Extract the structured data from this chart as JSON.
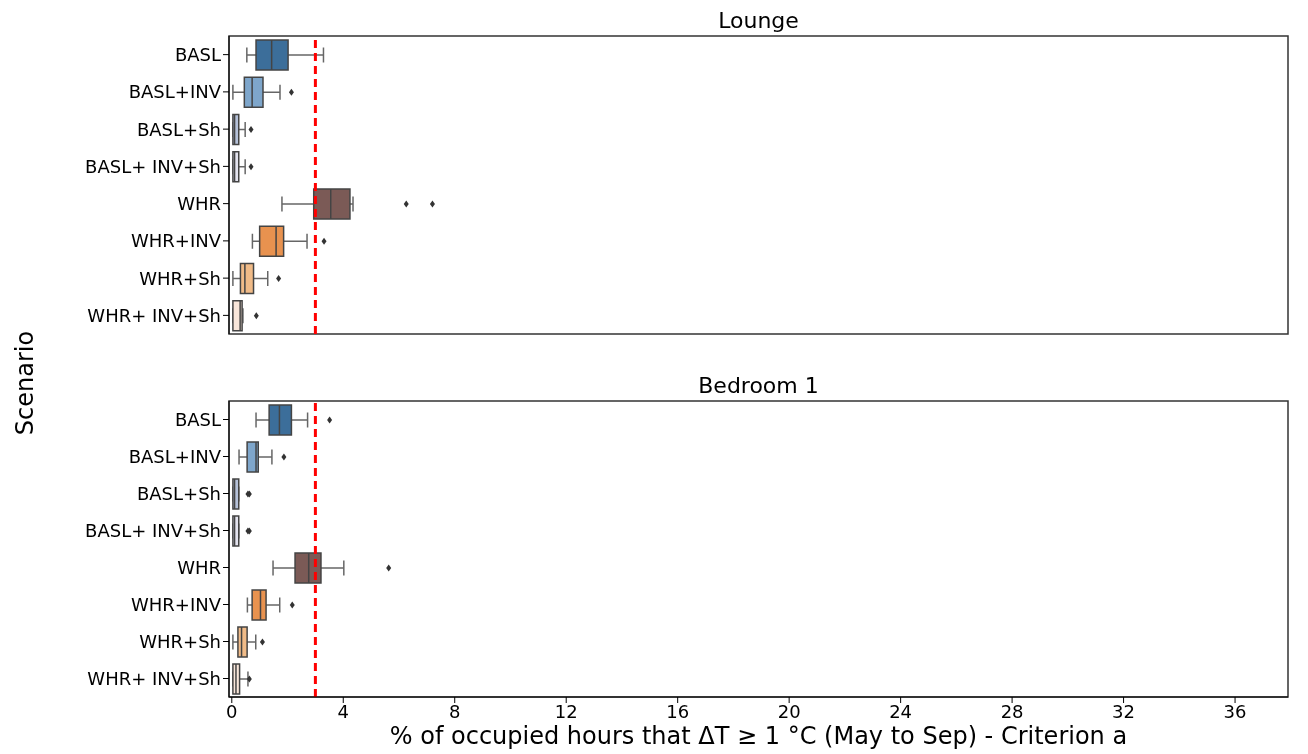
{
  "chart_data": [
    {
      "type": "box",
      "orientation": "horizontal",
      "title": "Lounge",
      "ylabel": "Scenario",
      "tick_labels": "y",
      "categories": [
        "BASL",
        "BASL+INV",
        "BASL+Sh",
        "BASL+ INV+Sh",
        "WHR",
        "WHR+INV",
        "WHR+Sh",
        "WHR+ INV+Sh"
      ],
      "colors": [
        "#3c6e9a",
        "#7ea6cb",
        "#b5c1d9",
        "#e4e4ef",
        "#7b5a56",
        "#e8924f",
        "#f0bb88",
        "#f9e6da"
      ],
      "boxes": [
        {
          "low": 0.54,
          "q1": 0.87,
          "median": 1.43,
          "q3": 2.02,
          "high": 3.29
        },
        {
          "low": 0.04,
          "q1": 0.45,
          "median": 0.73,
          "q3": 1.12,
          "high": 1.73,
          "outliers": [
            2.14
          ]
        },
        {
          "low": 0.04,
          "q1": 0.04,
          "median": 0.1,
          "q3": 0.25,
          "high": 0.48,
          "outliers": [
            0.69
          ]
        },
        {
          "low": 0.04,
          "q1": 0.04,
          "median": 0.1,
          "q3": 0.25,
          "high": 0.48,
          "outliers": [
            0.69
          ]
        },
        {
          "low": 1.8,
          "q1": 2.94,
          "median": 3.55,
          "q3": 4.24,
          "high": 4.35,
          "outliers": [
            6.26,
            7.2
          ]
        },
        {
          "low": 0.74,
          "q1": 1.0,
          "median": 1.59,
          "q3": 1.86,
          "high": 2.7,
          "outliers": [
            3.31
          ]
        },
        {
          "low": 0.04,
          "q1": 0.31,
          "median": 0.47,
          "q3": 0.78,
          "high": 1.29,
          "outliers": [
            1.68
          ]
        },
        {
          "low": 0.04,
          "q1": 0.04,
          "median": 0.3,
          "q3": 0.37,
          "high": 0.4,
          "outliers": [
            0.88
          ]
        }
      ],
      "xlim": [
        -0.1,
        37.9
      ],
      "xticks": [
        0,
        4,
        8,
        12,
        16,
        20,
        24,
        28,
        32,
        36
      ],
      "ref_lines": [
        {
          "axis": "x",
          "value": 3,
          "color": "#ff0000",
          "line_style": "dashed"
        }
      ]
    },
    {
      "type": "box",
      "orientation": "horizontal",
      "title": "Bedroom 1",
      "xlabel": "% of occupied hours that ΔT ≥ 1 °C (May to Sep) - Criterion a",
      "categories": [
        "BASL",
        "BASL+INV",
        "BASL+Sh",
        "BASL+ INV+Sh",
        "WHR",
        "WHR+INV",
        "WHR+Sh",
        "WHR+ INV+Sh"
      ],
      "colors": [
        "#3c6e9a",
        "#7ea6cb",
        "#b5c1d9",
        "#e4e4ef",
        "#7b5a56",
        "#e8924f",
        "#f0bb88",
        "#f9e6da"
      ],
      "boxes": [
        {
          "low": 0.87,
          "q1": 1.34,
          "median": 1.71,
          "q3": 2.14,
          "high": 2.72,
          "outliers": [
            3.51
          ]
        },
        {
          "low": 0.26,
          "q1": 0.55,
          "median": 0.87,
          "q3": 0.95,
          "high": 1.44,
          "outliers": [
            1.87
          ]
        },
        {
          "low": 0.04,
          "q1": 0.04,
          "median": 0.1,
          "q3": 0.25,
          "high": 0.25,
          "outliers": [
            0.58,
            0.63
          ]
        },
        {
          "low": 0.04,
          "q1": 0.04,
          "median": 0.1,
          "q3": 0.25,
          "high": 0.25,
          "outliers": [
            0.58,
            0.63
          ]
        },
        {
          "low": 1.48,
          "q1": 2.27,
          "median": 2.76,
          "q3": 3.2,
          "high": 4.02,
          "outliers": [
            5.63
          ]
        },
        {
          "low": 0.56,
          "q1": 0.73,
          "median": 1.03,
          "q3": 1.23,
          "high": 1.72,
          "outliers": [
            2.17
          ]
        },
        {
          "low": 0.04,
          "q1": 0.22,
          "median": 0.35,
          "q3": 0.55,
          "high": 0.86,
          "outliers": [
            1.1
          ]
        },
        {
          "low": 0.04,
          "q1": 0.04,
          "median": 0.15,
          "q3": 0.28,
          "high": 0.58,
          "outliers": [
            0.63
          ]
        }
      ],
      "xlim": [
        -0.1,
        37.9
      ],
      "xticks": [
        0,
        4,
        8,
        12,
        16,
        20,
        24,
        28,
        32,
        36
      ],
      "ref_lines": [
        {
          "axis": "x",
          "value": 3,
          "color": "#ff0000",
          "line_style": "dashed"
        }
      ]
    }
  ]
}
